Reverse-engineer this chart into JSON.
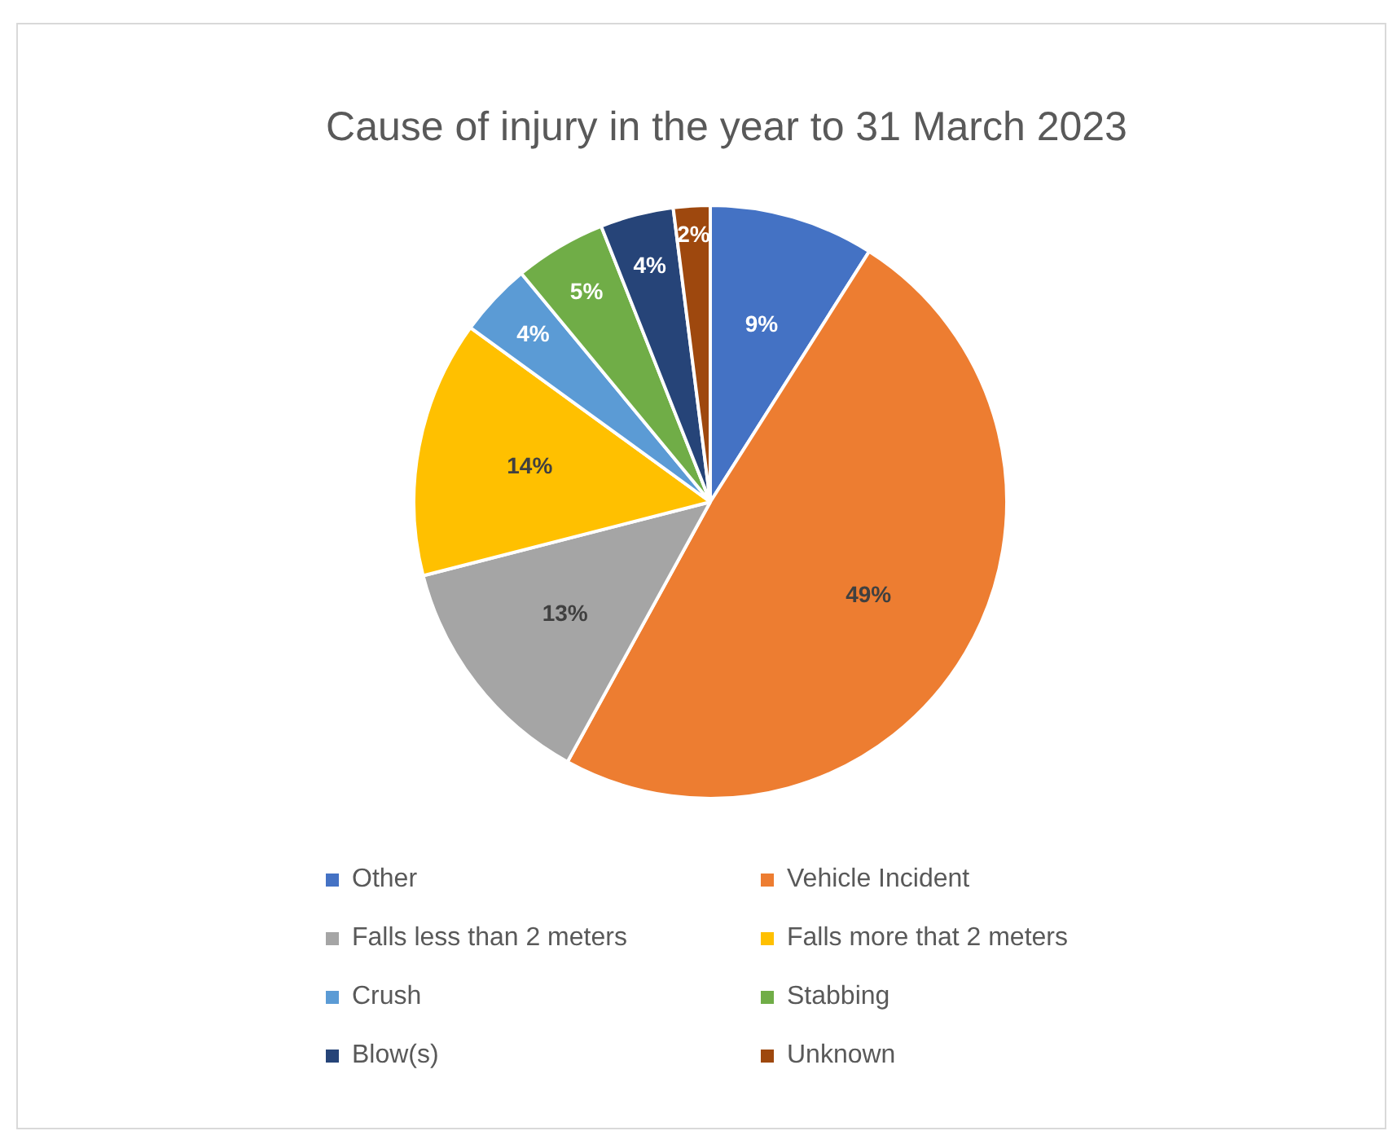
{
  "chart_data": {
    "type": "pie",
    "title": "Cause of injury in the year to 31 March 2023",
    "categories": [
      "Other",
      "Vehicle Incident",
      "Falls less than 2 meters",
      "Falls more that 2 meters",
      "Crush",
      "Stabbing",
      "Blow(s)",
      "Unknown"
    ],
    "values": [
      9,
      49,
      13,
      14,
      4,
      5,
      4,
      2
    ],
    "colors": [
      "#4472c4",
      "#ed7d31",
      "#a5a5a5",
      "#ffc000",
      "#5b9bd5",
      "#70ad47",
      "#264478",
      "#9e480e"
    ],
    "value_labels": [
      "9%",
      "49%",
      "13%",
      "14%",
      "4%",
      "5%",
      "4%",
      "2%"
    ],
    "legend": "bottom"
  }
}
